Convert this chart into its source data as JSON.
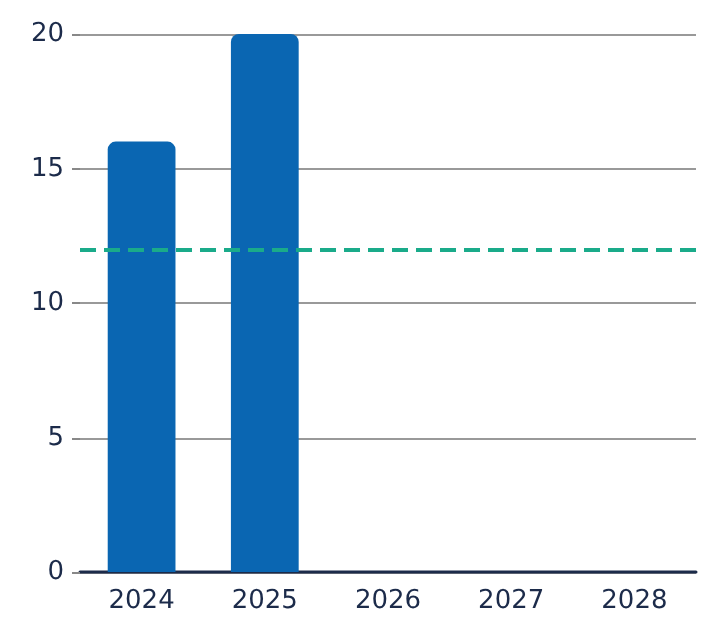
{
  "chart_data": {
    "type": "bar",
    "categories": [
      "2024",
      "2025",
      "2026",
      "2027",
      "2028"
    ],
    "values": [
      16,
      20,
      null,
      null,
      null
    ],
    "color": "#0a66b2",
    "ylim": [
      0,
      20
    ],
    "yticks": [
      0,
      5,
      10,
      15,
      20
    ],
    "grid": "y",
    "ref_lines": [
      {
        "axis": "y",
        "value": 12,
        "color": "#1aab8a",
        "line_style": "dashed"
      }
    ]
  }
}
